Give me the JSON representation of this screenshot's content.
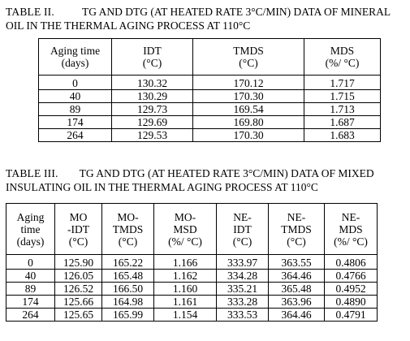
{
  "table2": {
    "label": "TABLE II.",
    "caption_line1": "TG AND DTG (AT HEATED RATE 3°C/MIN) DATA OF MINERAL",
    "caption_line2": "OIL IN THE THERMAL AGING PROCESS AT 110°C",
    "headers": [
      [
        "Aging time",
        "(days)"
      ],
      [
        "IDT",
        "(°C)"
      ],
      [
        "TMDS",
        "(°C)"
      ],
      [
        "MDS",
        "(%/ °C)"
      ]
    ],
    "rows": [
      [
        "0",
        "130.32",
        "170.12",
        "1.717"
      ],
      [
        "40",
        "130.29",
        "170.30",
        "1.715"
      ],
      [
        "89",
        "129.73",
        "169.54",
        "1.713"
      ],
      [
        "174",
        "129.69",
        "169.80",
        "1.687"
      ],
      [
        "264",
        "129.53",
        "170.30",
        "1.683"
      ]
    ]
  },
  "table3": {
    "label": "TABLE III.",
    "caption_line1": "TG AND DTG (AT HEATED RATE 3°C/MIN) DATA OF MIXED",
    "caption_line2": "INSULATING OIL IN THE THERMAL AGING PROCESS AT 110°C",
    "headers": [
      [
        "Aging",
        "time",
        "(days)"
      ],
      [
        "MO",
        "-IDT",
        "(°C)"
      ],
      [
        "MO-",
        "TMDS",
        "(°C)"
      ],
      [
        "MO-",
        "MSD",
        "(%/ °C)"
      ],
      [
        "NE-",
        "IDT",
        "(°C)"
      ],
      [
        "NE-",
        "TMDS",
        "(°C)"
      ],
      [
        "NE-",
        "MDS",
        "(%/ °C)"
      ]
    ],
    "rows": [
      [
        "0",
        "125.90",
        "165.22",
        "1.166",
        "333.97",
        "363.55",
        "0.4806"
      ],
      [
        "40",
        "126.05",
        "165.48",
        "1.162",
        "334.28",
        "364.46",
        "0.4766"
      ],
      [
        "89",
        "126.52",
        "166.50",
        "1.160",
        "335.21",
        "365.48",
        "0.4952"
      ],
      [
        "174",
        "125.66",
        "164.98",
        "1.161",
        "333.28",
        "363.96",
        "0.4890"
      ],
      [
        "264",
        "125.65",
        "165.99",
        "1.154",
        "333.53",
        "364.46",
        "0.4791"
      ]
    ]
  }
}
